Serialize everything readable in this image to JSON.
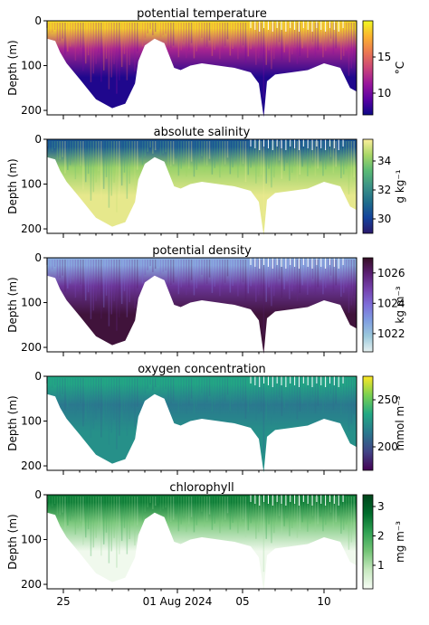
{
  "chart_data": [
    {
      "type": "heatmap",
      "title": "potential temperature",
      "ylabel": "Depth (m)",
      "colorbar_label": "°C",
      "colormap": "plasma",
      "cmin": 7,
      "cmax": 20,
      "colorbar_ticks": [
        {
          "value": 10,
          "label": "10"
        },
        {
          "value": 15,
          "label": "15"
        }
      ],
      "surface_value": 19,
      "deep_value": 7.5,
      "mid_value": 12
    },
    {
      "type": "heatmap",
      "title": "absolute salinity",
      "ylabel": "Depth (m)",
      "colorbar_label": "g kg⁻¹",
      "colormap": "haline",
      "cmin": 29,
      "cmax": 35.5,
      "colorbar_ticks": [
        {
          "value": 30,
          "label": "30"
        },
        {
          "value": 32,
          "label": "32"
        },
        {
          "value": 34,
          "label": "34"
        }
      ],
      "surface_value": 30.5,
      "deep_value": 35.2,
      "mid_value": 34.2
    },
    {
      "type": "heatmap",
      "title": "potential density",
      "ylabel": "Depth (m)",
      "colorbar_label": "kg m⁻³",
      "colormap": "dense",
      "cmin": 1020.8,
      "cmax": 1027,
      "colorbar_ticks": [
        {
          "value": 1022,
          "label": "1022"
        },
        {
          "value": 1024,
          "label": "1024"
        },
        {
          "value": 1026,
          "label": "1026"
        }
      ],
      "surface_value": 1022.5,
      "deep_value": 1026.7,
      "mid_value": 1025.3
    },
    {
      "type": "heatmap",
      "title": "oxygen concentration",
      "ylabel": "Depth (m)",
      "colorbar_label": "mmol m⁻³",
      "colormap": "viridis",
      "cmin": 175,
      "cmax": 275,
      "colorbar_ticks": [
        {
          "value": 200,
          "label": "200"
        },
        {
          "value": 250,
          "label": "250"
        }
      ],
      "surface_value": 235,
      "deep_value": 225,
      "mid_value": 215
    },
    {
      "type": "heatmap",
      "title": "chlorophyll",
      "ylabel": "Depth (m)",
      "colorbar_label": "mg m⁻³",
      "colormap": "greens",
      "cmin": 0.2,
      "cmax": 3.4,
      "colorbar_ticks": [
        {
          "value": 1,
          "label": "1"
        },
        {
          "value": 2,
          "label": "2"
        },
        {
          "value": 3,
          "label": "3"
        }
      ],
      "surface_value": 2.6,
      "deep_value": 0.3,
      "mid_value": 1.4
    }
  ],
  "shared_axes": {
    "ylim": [
      0,
      210
    ],
    "yticks": [
      {
        "value": 0,
        "label": "0"
      },
      {
        "value": 100,
        "label": "100"
      },
      {
        "value": 200,
        "label": "200"
      }
    ],
    "xlim": [
      "2024-07-24",
      "2024-08-12"
    ],
    "xticks": [
      {
        "day": 1,
        "label": "25"
      },
      {
        "day": 8,
        "label": "01 Aug 2024"
      },
      {
        "day": 12,
        "label": "05"
      },
      {
        "day": 17,
        "label": "10"
      }
    ],
    "x_minor_days": [
      1,
      2,
      3,
      4,
      5,
      6,
      7,
      8,
      9,
      10,
      11,
      12,
      13,
      14,
      15,
      16,
      17,
      18
    ]
  },
  "bottom_profile": {
    "days": [
      0.0,
      0.5,
      0.8,
      1.2,
      2.0,
      3.0,
      4.0,
      4.8,
      5.4,
      5.6,
      6.0,
      6.6,
      7.2,
      7.8,
      8.2,
      8.8,
      9.5,
      10.5,
      11.5,
      12.5,
      13.0,
      13.3,
      13.5,
      14.0,
      15.0,
      16.0,
      17.0,
      18.0,
      18.6,
      19.0
    ],
    "depth": [
      40,
      45,
      70,
      95,
      130,
      175,
      195,
      185,
      140,
      90,
      55,
      40,
      50,
      105,
      110,
      100,
      95,
      100,
      105,
      115,
      140,
      215,
      135,
      120,
      115,
      110,
      95,
      105,
      150,
      158
    ]
  }
}
